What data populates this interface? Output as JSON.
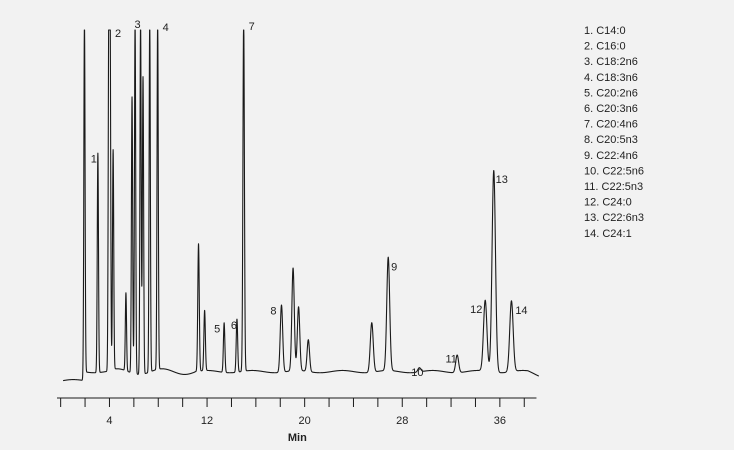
{
  "chart_data": {
    "type": "line",
    "xlabel": "Min",
    "ylabel": "",
    "title": "",
    "xlim": [
      -0.3,
      39.7
    ],
    "ylim": [
      0,
      100
    ],
    "x_ticks": [
      0,
      2,
      4,
      6,
      8,
      10,
      12,
      14,
      16,
      18,
      20,
      22,
      24,
      26,
      28,
      30,
      32,
      34,
      36,
      38
    ],
    "x_tick_labels": [
      {
        "x": 4,
        "label": "4"
      },
      {
        "x": 12,
        "label": "12"
      },
      {
        "x": 20,
        "label": "20"
      },
      {
        "x": 28,
        "label": "28"
      },
      {
        "x": 36,
        "label": "36"
      }
    ],
    "baseline": 3.5,
    "peaks": [
      {
        "x": 1.95,
        "y": 100,
        "w": 0.05
      },
      {
        "x": 3.05,
        "y": 62,
        "w": 0.05,
        "label": "1"
      },
      {
        "x": 3.95,
        "y": 100,
        "w": 0.05
      },
      {
        "x": 4.05,
        "y": 98,
        "w": 0.05,
        "label": "2"
      },
      {
        "x": 4.3,
        "y": 62,
        "w": 0.05
      },
      {
        "x": 5.35,
        "y": 22,
        "w": 0.05
      },
      {
        "x": 5.85,
        "y": 78,
        "w": 0.05
      },
      {
        "x": 6.1,
        "y": 100,
        "w": 0.05
      },
      {
        "x": 6.55,
        "y": 100,
        "w": 0.05,
        "label": "3"
      },
      {
        "x": 6.75,
        "y": 84,
        "w": 0.05
      },
      {
        "x": 7.3,
        "y": 100,
        "w": 0.05
      },
      {
        "x": 7.95,
        "y": 100,
        "w": 0.05,
        "label": "4"
      },
      {
        "x": 11.3,
        "y": 36,
        "w": 0.06
      },
      {
        "x": 11.8,
        "y": 17,
        "w": 0.06
      },
      {
        "x": 13.4,
        "y": 14,
        "w": 0.06,
        "label": "5"
      },
      {
        "x": 14.45,
        "y": 15,
        "w": 0.06,
        "label": "6"
      },
      {
        "x": 15.0,
        "y": 100,
        "w": 0.06,
        "label": "7"
      },
      {
        "x": 18.1,
        "y": 19,
        "w": 0.1,
        "label": "8"
      },
      {
        "x": 19.05,
        "y": 29,
        "w": 0.1
      },
      {
        "x": 19.5,
        "y": 18,
        "w": 0.1
      },
      {
        "x": 20.3,
        "y": 9,
        "w": 0.1
      },
      {
        "x": 25.5,
        "y": 14,
        "w": 0.12
      },
      {
        "x": 26.85,
        "y": 32,
        "w": 0.12,
        "label": "9"
      },
      {
        "x": 29.4,
        "y": 1.2,
        "w": 0.12,
        "label": "10"
      },
      {
        "x": 32.5,
        "y": 5,
        "w": 0.12,
        "label": "11"
      },
      {
        "x": 34.8,
        "y": 20,
        "w": 0.14,
        "label": "12"
      },
      {
        "x": 35.5,
        "y": 57,
        "w": 0.14,
        "label": "13"
      },
      {
        "x": 36.95,
        "y": 20,
        "w": 0.14,
        "label": "14"
      }
    ],
    "legend": [
      "1.   C14:0",
      "2.   C16:0",
      "3.   C18:2n6",
      "4.   C18:3n6",
      "5.   C20:2n6",
      "6.   C20:3n6",
      "7.   C20:4n6",
      "8.   C20:5n3",
      "9.   C22:4n6",
      "10.   C22:5n6",
      "11.   C22:5n3",
      "12.   C24:0",
      "13.   C22:6n3",
      "14.   C24:1"
    ],
    "colors": {
      "line": "#1a1a1a",
      "background": "#f2f2f2"
    }
  }
}
